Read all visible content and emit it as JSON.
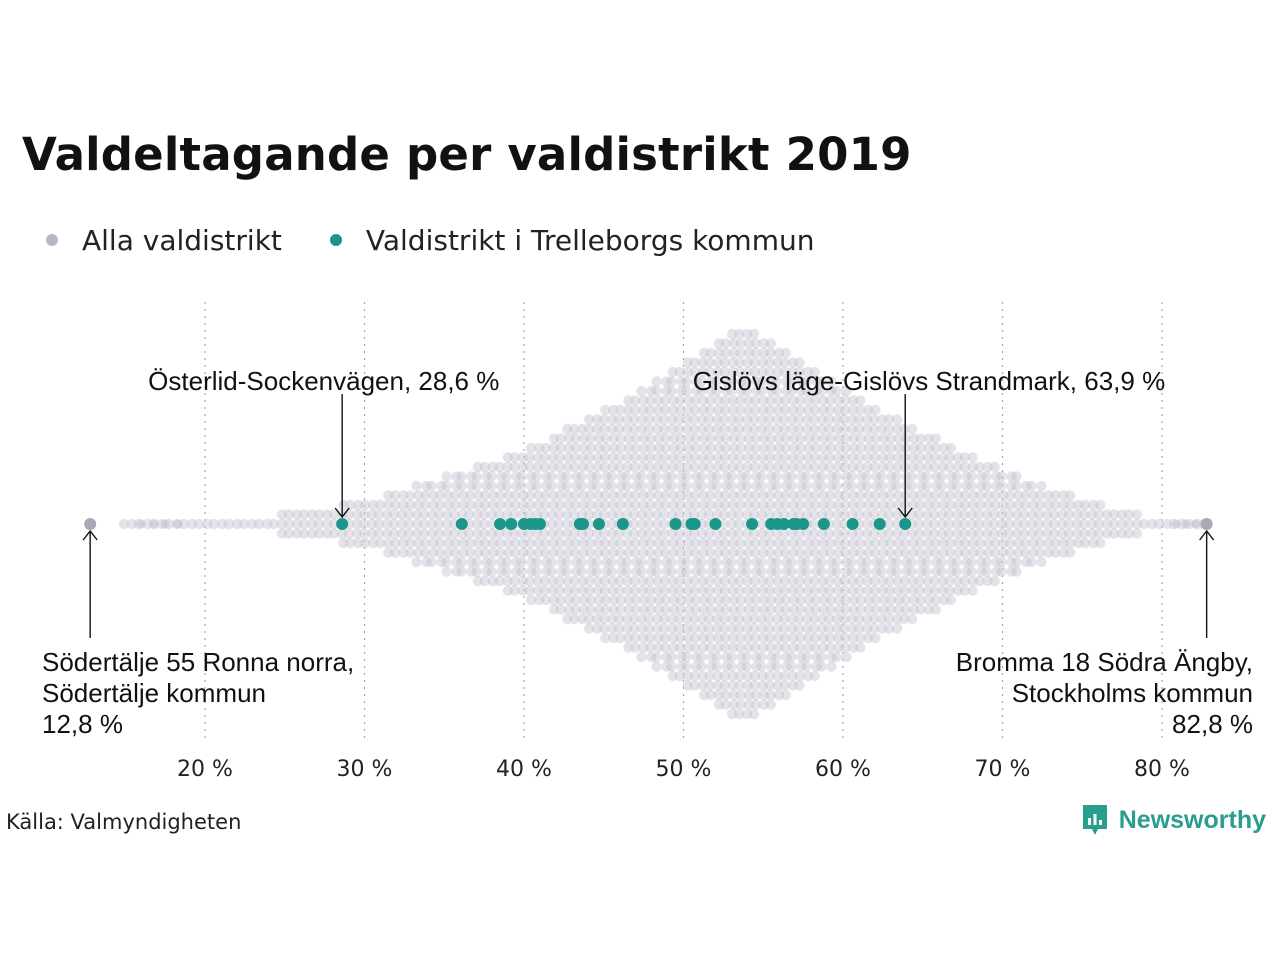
{
  "title": "Valdeltagande per valdistrikt 2019",
  "source": "Källa: Valmyndigheten",
  "brand": "Newsworthy",
  "colors": {
    "all": "#c2c2cf",
    "highlight": "#1b968a",
    "text": "#111111",
    "grid": "#aaaaaa"
  },
  "legend": [
    {
      "label": "Alla valdistrikt",
      "color": "#b7b7c6"
    },
    {
      "label": "Valdistrikt i Trelleborgs kommun",
      "color": "#1b968a"
    }
  ],
  "chart_data": {
    "type": "scatter",
    "xlim": [
      12,
      84
    ],
    "ticks": [
      20,
      30,
      40,
      50,
      60,
      70,
      80
    ],
    "tick_labels": [
      "20 %",
      "30 %",
      "40 %",
      "50 %",
      "60 %",
      "70 %",
      "80 %"
    ],
    "grid": "vertical dotted",
    "density_peak": 53.8,
    "series": [
      {
        "name": "Valdistrikt i Trelleborgs kommun",
        "values": [
          28.6,
          36.1,
          38.5,
          39.2,
          40.0,
          40.4,
          40.7,
          41.0,
          43.5,
          43.7,
          44.7,
          46.2,
          49.5,
          50.5,
          50.7,
          52.0,
          54.3,
          55.5,
          55.9,
          56.3,
          56.9,
          57.1,
          57.5,
          58.8,
          60.6,
          62.3,
          63.9
        ]
      },
      {
        "name": "Alla valdistrikt",
        "extremes": [
          12.8,
          82.8
        ]
      }
    ],
    "annotations": [
      {
        "text": [
          "Österlid-Sockenvägen, 28,6 %"
        ],
        "value": 28.6,
        "position": "above",
        "align": "start"
      },
      {
        "text": [
          "Gislövs läge-Gislövs Strandmark, 63,9 %"
        ],
        "value": 63.9,
        "position": "above",
        "align": "end"
      },
      {
        "text": [
          "Södertälje 55 Ronna norra,",
          "Södertälje kommun",
          "12,8 %"
        ],
        "value": 12.8,
        "position": "below",
        "align": "start"
      },
      {
        "text": [
          "Bromma 18 Södra Ängby,",
          "Stockholms kommun",
          "82,8 %"
        ],
        "value": 82.8,
        "position": "below",
        "align": "end"
      }
    ]
  }
}
